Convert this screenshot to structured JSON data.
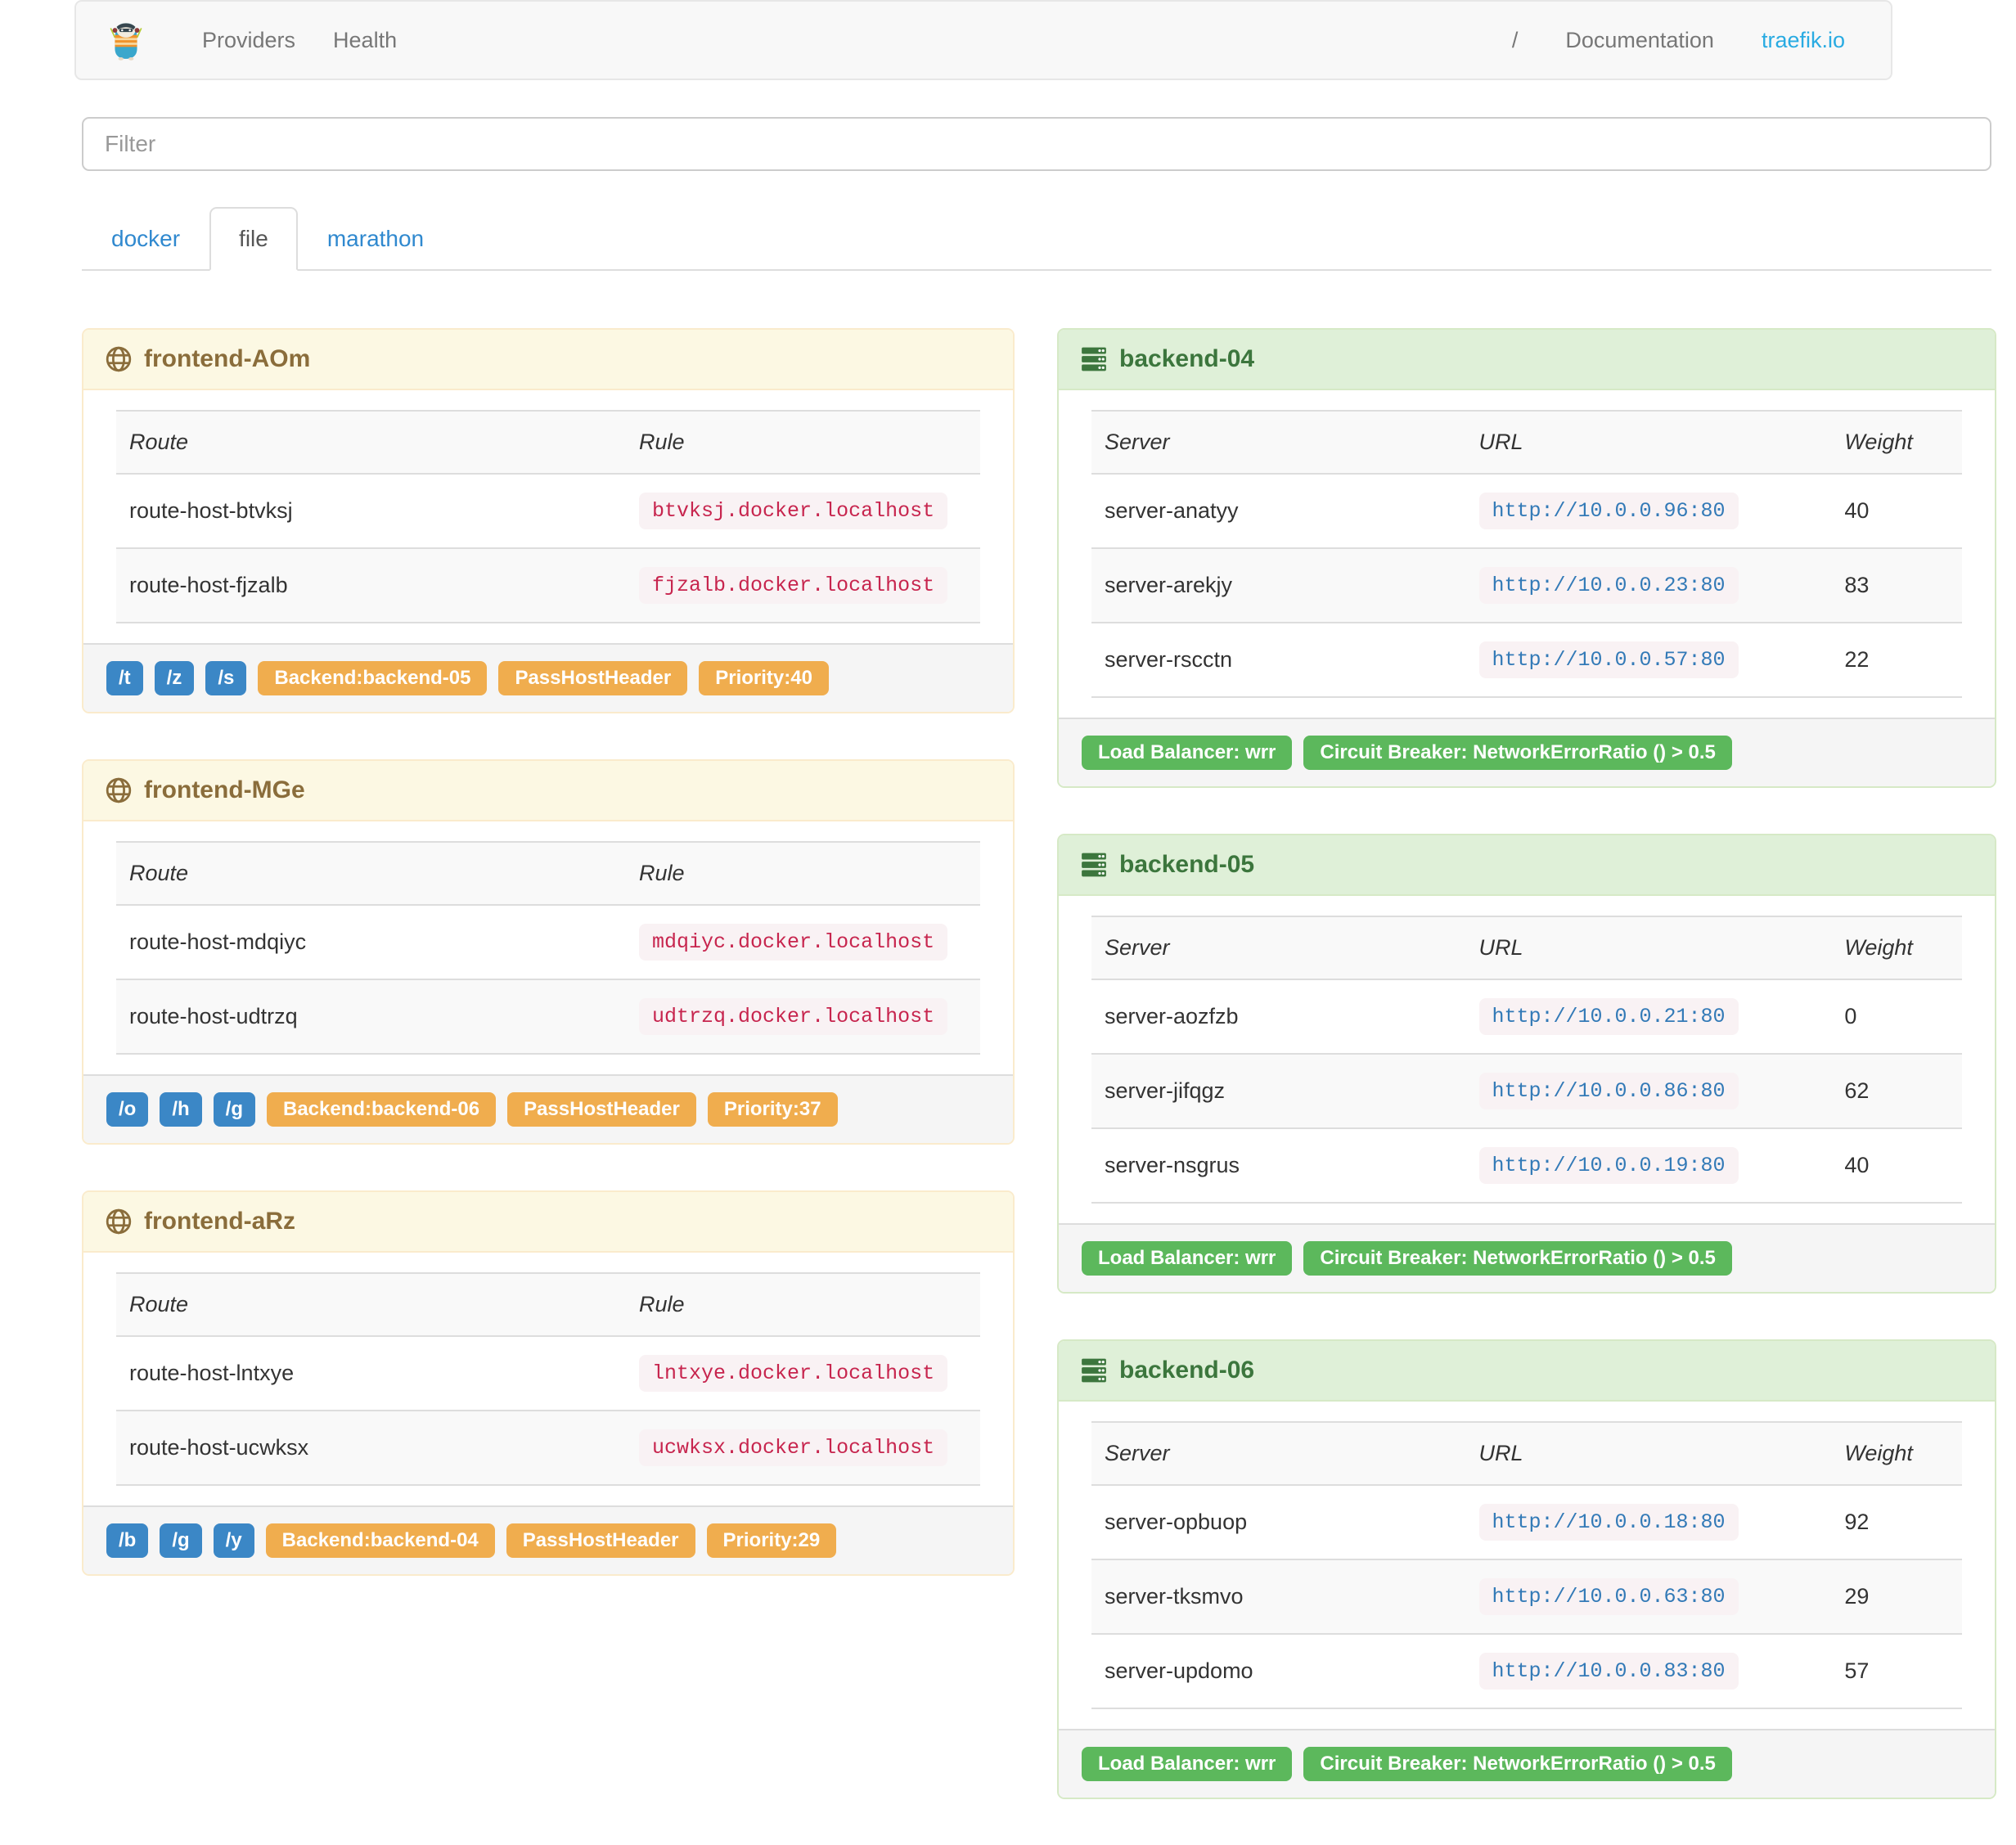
{
  "navbar": {
    "brand_icon": "traefik-gopher-logo",
    "providers": "Providers",
    "health": "Health",
    "separator": "/",
    "documentation": "Documentation",
    "traefik_io": "traefik.io"
  },
  "filter": {
    "placeholder": "Filter"
  },
  "tabs": [
    {
      "label": "docker",
      "active": false
    },
    {
      "label": "file",
      "active": true
    },
    {
      "label": "marathon",
      "active": false
    }
  ],
  "frontend_columns": [
    "Route",
    "Rule"
  ],
  "backend_columns": [
    "Server",
    "URL",
    "Weight"
  ],
  "frontends": [
    {
      "icon": "globe-icon",
      "title": "frontend-AOm",
      "rows": [
        {
          "route": "route-host-btvksj",
          "rule": "btvksj.docker.localhost"
        },
        {
          "route": "route-host-fjzalb",
          "rule": "fjzalb.docker.localhost"
        }
      ],
      "entry_badges": [
        "/t",
        "/z",
        "/s"
      ],
      "prop_badges": [
        "Backend:backend-05",
        "PassHostHeader",
        "Priority:40"
      ]
    },
    {
      "icon": "globe-icon",
      "title": "frontend-MGe",
      "rows": [
        {
          "route": "route-host-mdqiyc",
          "rule": "mdqiyc.docker.localhost"
        },
        {
          "route": "route-host-udtrzq",
          "rule": "udtrzq.docker.localhost"
        }
      ],
      "entry_badges": [
        "/o",
        "/h",
        "/g"
      ],
      "prop_badges": [
        "Backend:backend-06",
        "PassHostHeader",
        "Priority:37"
      ]
    },
    {
      "icon": "globe-icon",
      "title": "frontend-aRz",
      "rows": [
        {
          "route": "route-host-lntxye",
          "rule": "lntxye.docker.localhost"
        },
        {
          "route": "route-host-ucwksx",
          "rule": "ucwksx.docker.localhost"
        }
      ],
      "entry_badges": [
        "/b",
        "/g",
        "/y"
      ],
      "prop_badges": [
        "Backend:backend-04",
        "PassHostHeader",
        "Priority:29"
      ]
    }
  ],
  "backends": [
    {
      "icon": "server-icon",
      "title": "backend-04",
      "rows": [
        {
          "server": "server-anatyy",
          "url": "http://10.0.0.96:80",
          "weight": "40"
        },
        {
          "server": "server-arekjy",
          "url": "http://10.0.0.23:80",
          "weight": "83"
        },
        {
          "server": "server-rscctn",
          "url": "http://10.0.0.57:80",
          "weight": "22"
        }
      ],
      "badges": [
        "Load Balancer: wrr",
        "Circuit Breaker: NetworkErrorRatio () > 0.5"
      ]
    },
    {
      "icon": "server-icon",
      "title": "backend-05",
      "rows": [
        {
          "server": "server-aozfzb",
          "url": "http://10.0.0.21:80",
          "weight": "0"
        },
        {
          "server": "server-jifqgz",
          "url": "http://10.0.0.86:80",
          "weight": "62"
        },
        {
          "server": "server-nsgrus",
          "url": "http://10.0.0.19:80",
          "weight": "40"
        }
      ],
      "badges": [
        "Load Balancer: wrr",
        "Circuit Breaker: NetworkErrorRatio () > 0.5"
      ]
    },
    {
      "icon": "server-icon",
      "title": "backend-06",
      "rows": [
        {
          "server": "server-opbuop",
          "url": "http://10.0.0.18:80",
          "weight": "92"
        },
        {
          "server": "server-tksmvo",
          "url": "http://10.0.0.63:80",
          "weight": "29"
        },
        {
          "server": "server-updomo",
          "url": "http://10.0.0.83:80",
          "weight": "57"
        }
      ],
      "badges": [
        "Load Balancer: wrr",
        "Circuit Breaker: NetworkErrorRatio () > 0.5"
      ]
    }
  ],
  "colors": {
    "warning_text": "#8a6d3b",
    "warning_bg": "#fcf8e3",
    "warning_border": "#faebcc",
    "success_text": "#3c763d",
    "success_bg": "#dff0d8",
    "success_border": "#d6e9c6",
    "badge_blue": "#3b87c6",
    "badge_orange": "#f0ad4e",
    "badge_green": "#5cb85c",
    "code_text": "#c7254e",
    "code_bg": "#f9f2f4",
    "link_blue": "#3089cf",
    "brand_blue": "#29abe2"
  }
}
